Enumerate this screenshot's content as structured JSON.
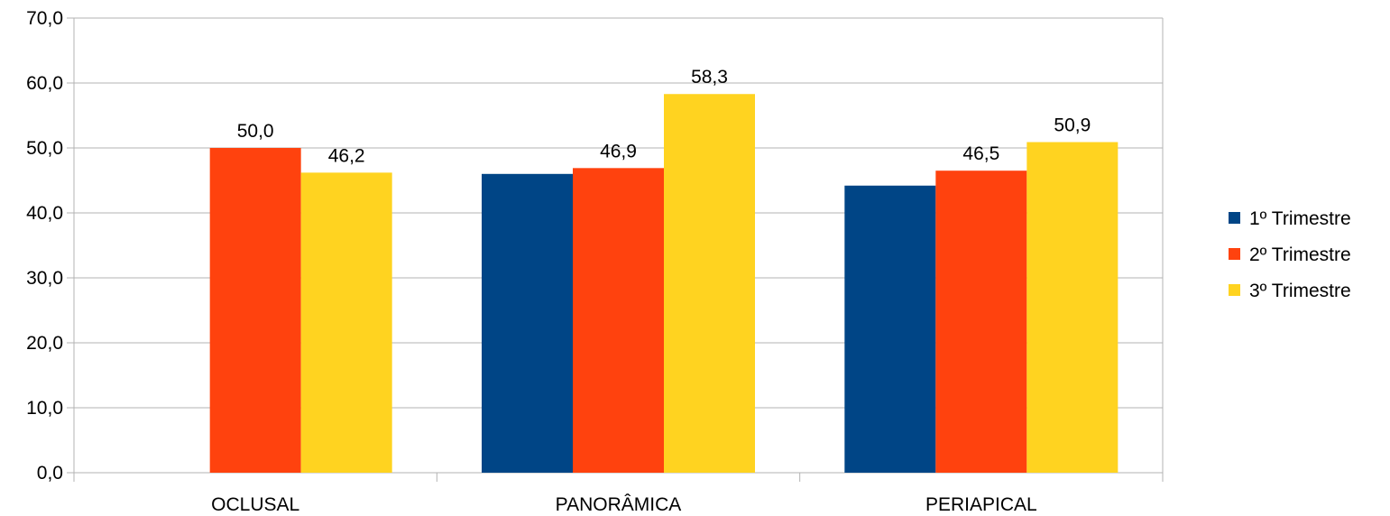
{
  "chart_data": {
    "type": "bar",
    "title": "",
    "xlabel": "",
    "ylabel": "",
    "categories": [
      "OCLUSAL",
      "PANORÂMICA",
      "PERIAPICAL"
    ],
    "series": [
      {
        "name": "1º Trimestre",
        "color": "#004586",
        "values": [
          null,
          46.0,
          44.2
        ],
        "labels": [
          "",
          "",
          ""
        ]
      },
      {
        "name": "2º Trimestre",
        "color": "#ff420e",
        "values": [
          50.0,
          46.9,
          46.5
        ],
        "labels": [
          "50,0",
          "46,9",
          "46,5"
        ]
      },
      {
        "name": "3º Trimestre",
        "color": "#ffd320",
        "values": [
          46.2,
          58.3,
          50.9
        ],
        "labels": [
          "46,2",
          "58,3",
          "50,9"
        ]
      }
    ],
    "ylim": [
      0,
      70
    ],
    "yticks": [
      "0,0",
      "10,0",
      "20,0",
      "30,0",
      "40,0",
      "50,0",
      "60,0",
      "70,0"
    ],
    "grid": true,
    "legend": "right"
  }
}
